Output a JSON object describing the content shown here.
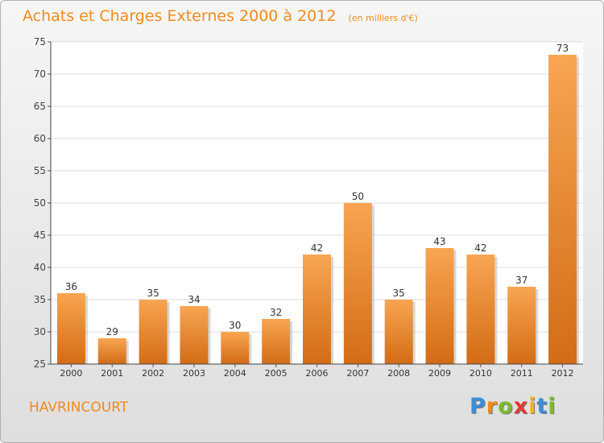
{
  "chart_data": {
    "type": "bar",
    "title": "Achats et Charges Externes 2000 à 2012",
    "subtitle": "(en milliers d'€)",
    "categories": [
      "2000",
      "2001",
      "2002",
      "2003",
      "2004",
      "2005",
      "2006",
      "2007",
      "2008",
      "2009",
      "2010",
      "2011",
      "2012"
    ],
    "values": [
      36,
      29,
      35,
      34,
      30,
      32,
      42,
      50,
      35,
      43,
      42,
      37,
      73
    ],
    "ylim": [
      25,
      75
    ],
    "yticks": [
      25,
      30,
      35,
      40,
      45,
      50,
      55,
      60,
      65,
      70,
      75
    ],
    "grid": true,
    "xlabel": "",
    "ylabel": ""
  },
  "place_name": "HAVRINCOURT",
  "brand": {
    "letters": [
      "P",
      "r",
      "o",
      "x",
      "i",
      "t",
      "i"
    ],
    "colors": [
      "#3a8fd6",
      "#f08a1e",
      "#7dbb2f",
      "#e03a2f",
      "#f0b41e",
      "#3a8fd6",
      "#7dbb2f"
    ]
  },
  "colors": {
    "bar_top": "#f8a552",
    "bar_bottom": "#d36c16",
    "accent": "#f08a1e"
  }
}
